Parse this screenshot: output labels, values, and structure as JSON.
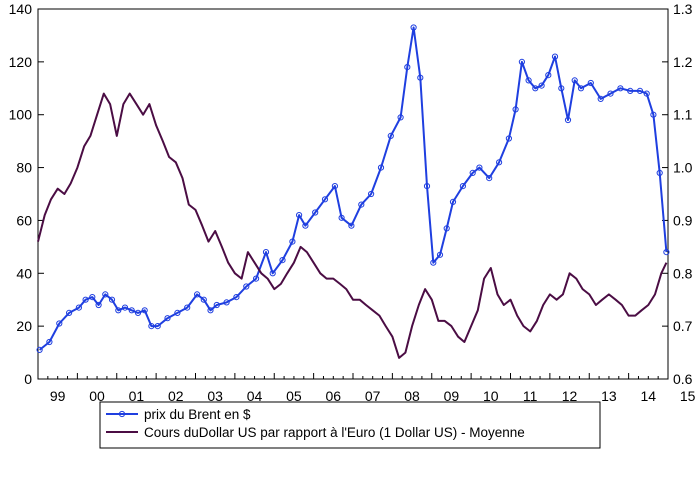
{
  "chart_data": {
    "type": "line",
    "title": "",
    "xlabel": "",
    "x_tick_labels": [
      "99",
      "00",
      "01",
      "02",
      "03",
      "04",
      "05",
      "06",
      "07",
      "08",
      "09",
      "10",
      "11",
      "12",
      "13",
      "14",
      "15"
    ],
    "x_range": [
      1999.0,
      2015.0
    ],
    "y_left": {
      "range": [
        0,
        140
      ],
      "ticks": [
        0,
        20,
        40,
        60,
        80,
        100,
        120,
        140
      ],
      "tick_labels": [
        "0",
        "20",
        "40",
        "60",
        "80",
        "100",
        "120",
        "140"
      ]
    },
    "y_right": {
      "range": [
        0.6,
        1.3
      ],
      "ticks": [
        0.6,
        0.7,
        0.8,
        0.9,
        1.0,
        1.1,
        1.2,
        1.3
      ],
      "tick_labels": [
        "0.6",
        "0.7",
        "0.8",
        "0.9",
        "1.0",
        "1.1",
        "1.2",
        "1.3"
      ]
    },
    "grid": false,
    "legend_placement": "bottom",
    "series": [
      {
        "name": "prix du Brent en $",
        "axis": "left",
        "color": "#1f3fe0",
        "marker": "circle",
        "x": [
          1999.04,
          1999.29,
          1999.54,
          1999.79,
          2000.04,
          2000.21,
          2000.38,
          2000.54,
          2000.71,
          2000.88,
          2001.04,
          2001.21,
          2001.38,
          2001.54,
          2001.71,
          2001.88,
          2002.04,
          2002.29,
          2002.54,
          2002.79,
          2003.04,
          2003.21,
          2003.38,
          2003.54,
          2003.79,
          2004.04,
          2004.29,
          2004.54,
          2004.79,
          2004.96,
          2005.21,
          2005.46,
          2005.63,
          2005.79,
          2006.04,
          2006.29,
          2006.54,
          2006.71,
          2006.96,
          2007.21,
          2007.46,
          2007.71,
          2007.96,
          2008.21,
          2008.38,
          2008.54,
          2008.71,
          2008.88,
          2009.04,
          2009.21,
          2009.38,
          2009.54,
          2009.79,
          2010.04,
          2010.21,
          2010.46,
          2010.71,
          2010.96,
          2011.13,
          2011.29,
          2011.46,
          2011.63,
          2011.79,
          2011.96,
          2012.13,
          2012.29,
          2012.46,
          2012.63,
          2012.79,
          2013.04,
          2013.29,
          2013.54,
          2013.79,
          2014.04,
          2014.29,
          2014.46,
          2014.63,
          2014.79,
          2014.96
        ],
        "values": [
          11,
          14,
          21,
          25,
          27,
          30,
          31,
          28,
          32,
          30,
          26,
          27,
          26,
          25,
          26,
          20,
          20,
          23,
          25,
          27,
          32,
          30,
          26,
          28,
          29,
          31,
          35,
          38,
          48,
          40,
          45,
          52,
          62,
          58,
          63,
          68,
          73,
          61,
          58,
          66,
          70,
          80,
          92,
          99,
          118,
          133,
          114,
          73,
          44,
          47,
          57,
          67,
          73,
          78,
          80,
          76,
          82,
          91,
          102,
          120,
          113,
          110,
          111,
          115,
          122,
          110,
          98,
          113,
          110,
          112,
          106,
          108,
          110,
          109,
          109,
          108,
          100,
          78,
          48
        ]
      },
      {
        "name": "Cours duDollar US par rapport à l'Euro (1 Dollar US) - Moyenne",
        "axis": "right",
        "color": "#4b0d44",
        "marker": "none",
        "x": [
          1999.0,
          1999.17,
          1999.33,
          1999.5,
          1999.67,
          1999.83,
          2000.0,
          2000.17,
          2000.33,
          2000.5,
          2000.67,
          2000.83,
          2001.0,
          2001.17,
          2001.33,
          2001.5,
          2001.67,
          2001.83,
          2002.0,
          2002.17,
          2002.33,
          2002.5,
          2002.67,
          2002.83,
          2003.0,
          2003.17,
          2003.33,
          2003.5,
          2003.67,
          2003.83,
          2004.0,
          2004.17,
          2004.33,
          2004.5,
          2004.67,
          2004.83,
          2005.0,
          2005.17,
          2005.33,
          2005.5,
          2005.67,
          2005.83,
          2006.0,
          2006.17,
          2006.33,
          2006.5,
          2006.67,
          2006.83,
          2007.0,
          2007.17,
          2007.33,
          2007.5,
          2007.67,
          2007.83,
          2008.0,
          2008.17,
          2008.33,
          2008.5,
          2008.67,
          2008.83,
          2009.0,
          2009.17,
          2009.33,
          2009.5,
          2009.67,
          2009.83,
          2010.0,
          2010.17,
          2010.33,
          2010.5,
          2010.67,
          2010.83,
          2011.0,
          2011.17,
          2011.33,
          2011.5,
          2011.67,
          2011.83,
          2012.0,
          2012.17,
          2012.33,
          2012.5,
          2012.67,
          2012.83,
          2013.0,
          2013.17,
          2013.33,
          2013.5,
          2013.67,
          2013.83,
          2014.0,
          2014.17,
          2014.33,
          2014.5,
          2014.67,
          2014.83,
          2014.96
        ],
        "values": [
          0.86,
          0.91,
          0.94,
          0.96,
          0.95,
          0.97,
          1.0,
          1.04,
          1.06,
          1.1,
          1.14,
          1.12,
          1.06,
          1.12,
          1.14,
          1.12,
          1.1,
          1.12,
          1.08,
          1.05,
          1.02,
          1.01,
          0.98,
          0.93,
          0.92,
          0.89,
          0.86,
          0.88,
          0.85,
          0.82,
          0.8,
          0.79,
          0.84,
          0.82,
          0.8,
          0.79,
          0.77,
          0.78,
          0.8,
          0.82,
          0.85,
          0.84,
          0.82,
          0.8,
          0.79,
          0.79,
          0.78,
          0.77,
          0.75,
          0.75,
          0.74,
          0.73,
          0.72,
          0.7,
          0.68,
          0.64,
          0.65,
          0.7,
          0.74,
          0.77,
          0.75,
          0.71,
          0.71,
          0.7,
          0.68,
          0.67,
          0.7,
          0.73,
          0.79,
          0.81,
          0.76,
          0.74,
          0.75,
          0.72,
          0.7,
          0.69,
          0.71,
          0.74,
          0.76,
          0.75,
          0.76,
          0.8,
          0.79,
          0.77,
          0.76,
          0.74,
          0.75,
          0.76,
          0.75,
          0.74,
          0.72,
          0.72,
          0.73,
          0.74,
          0.76,
          0.8,
          0.82
        ]
      }
    ]
  }
}
